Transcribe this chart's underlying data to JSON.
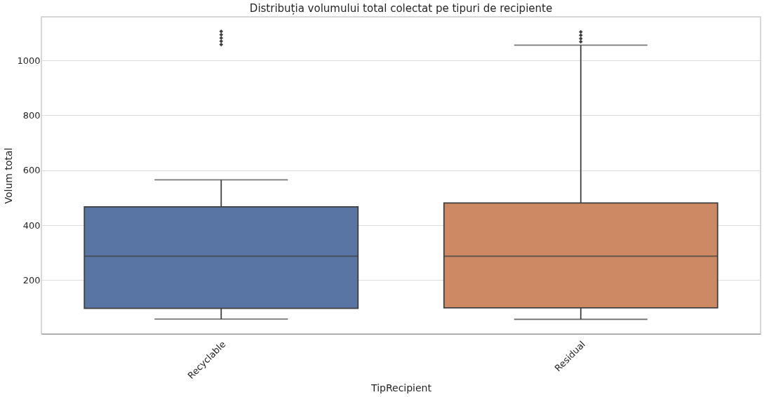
{
  "chart_data": {
    "type": "box",
    "title": "Distribuția volumului total colectat pe tipuri de recipiente",
    "xlabel": "TipRecipient",
    "ylabel": "Volum total",
    "categories": [
      "Recyclable",
      "Residual"
    ],
    "series": [
      {
        "colors": [
          "#5975a4",
          "#cc8963"
        ],
        "boxes": [
          {
            "low": 58,
            "q1": 97,
            "median": 287,
            "q3": 467,
            "high": 565,
            "outliers": [
              1058,
              1070,
              1082,
              1094,
              1106
            ]
          },
          {
            "low": 57,
            "q1": 99,
            "median": 287,
            "q3": 481,
            "high": 1056,
            "outliers": [
              1068,
              1080,
              1092,
              1104
            ]
          }
        ]
      }
    ],
    "ylim": [
      4,
      1159
    ],
    "yticks": [
      200,
      400,
      600,
      800,
      1000
    ],
    "grid": "y"
  }
}
